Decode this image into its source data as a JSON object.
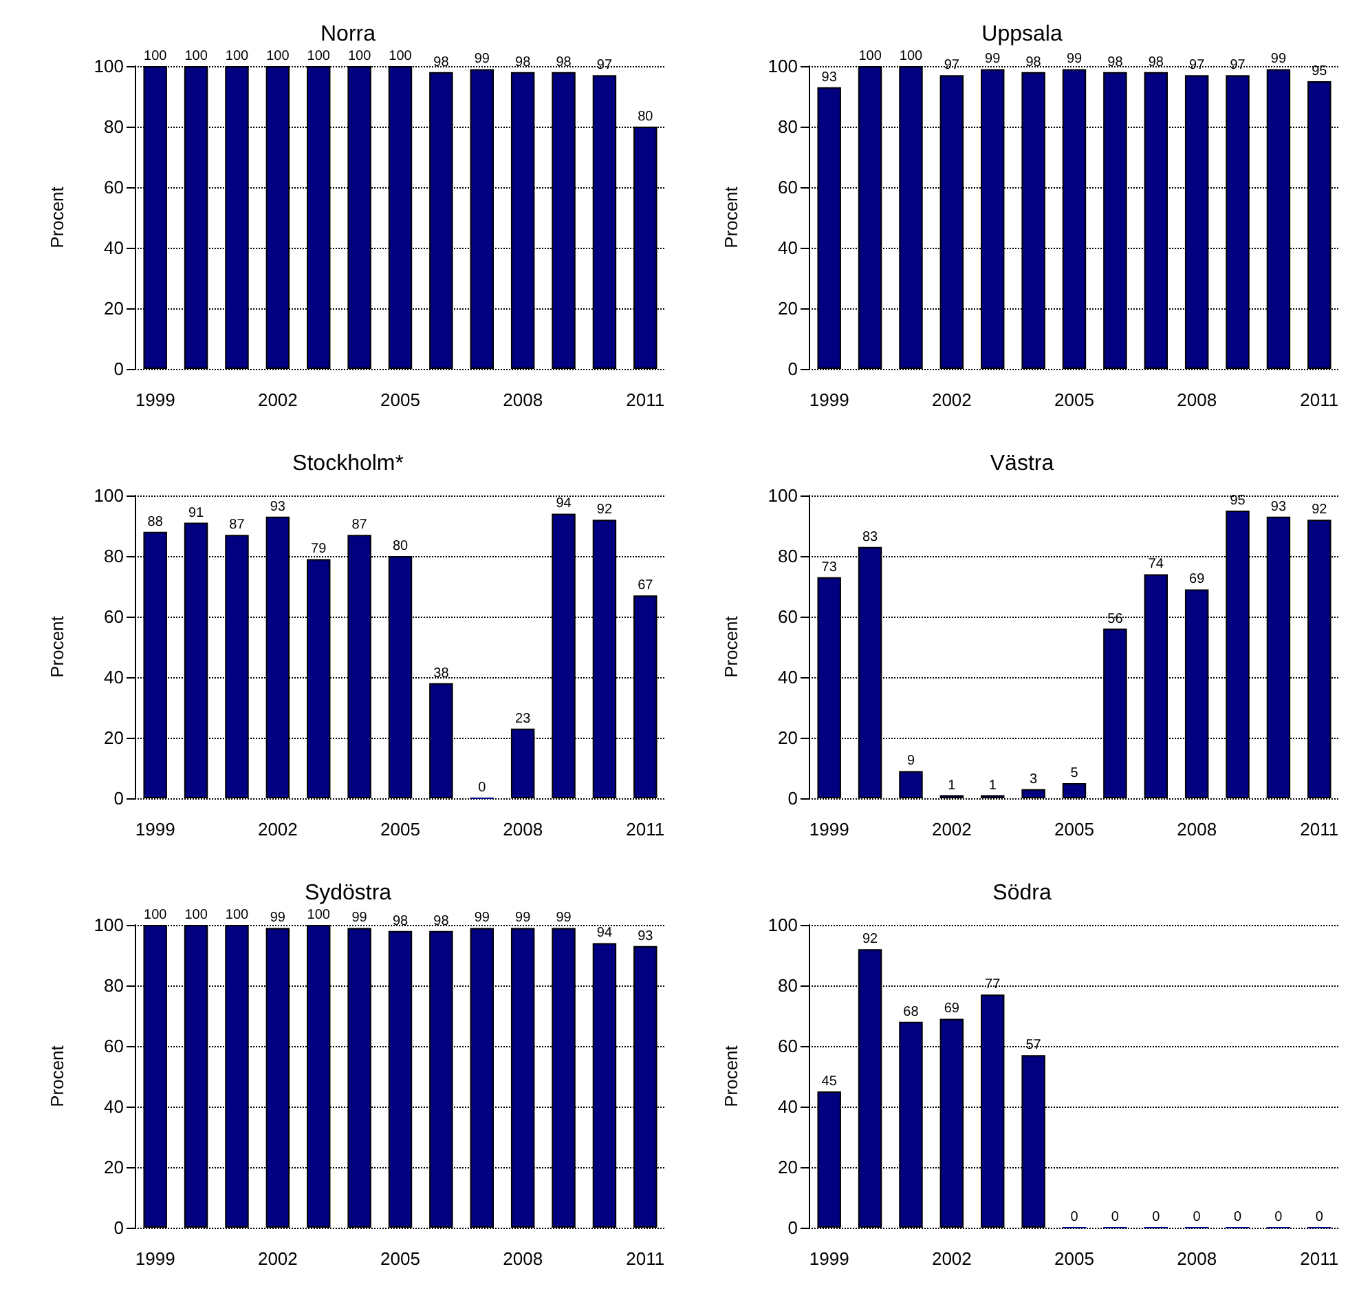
{
  "chart_data": [
    {
      "type": "bar",
      "title": "Norra",
      "ylabel": "Procent",
      "categories": [
        "1999",
        null,
        null,
        "2002",
        null,
        null,
        "2005",
        null,
        null,
        "2008",
        null,
        null,
        "2011"
      ],
      "values": [
        100,
        100,
        100,
        100,
        100,
        100,
        100,
        98,
        99,
        98,
        98,
        97,
        80
      ],
      "color": "#000080",
      "ylim": [
        0,
        100
      ],
      "yticks": [
        0,
        20,
        40,
        60,
        80,
        100
      ],
      "grid": "y",
      "data_labels": true
    },
    {
      "type": "bar",
      "title": "Uppsala",
      "ylabel": "Procent",
      "categories": [
        "1999",
        null,
        null,
        "2002",
        null,
        null,
        "2005",
        null,
        null,
        "2008",
        null,
        null,
        "2011"
      ],
      "values": [
        93,
        100,
        100,
        97,
        99,
        98,
        99,
        98,
        98,
        97,
        97,
        99,
        95
      ],
      "color": "#000080",
      "ylim": [
        0,
        100
      ],
      "yticks": [
        0,
        20,
        40,
        60,
        80,
        100
      ],
      "grid": "y",
      "data_labels": true
    },
    {
      "type": "bar",
      "title": "Stockholm*",
      "ylabel": "Procent",
      "categories": [
        "1999",
        null,
        null,
        "2002",
        null,
        null,
        "2005",
        null,
        null,
        "2008",
        null,
        null,
        "2011"
      ],
      "values": [
        88,
        91,
        87,
        93,
        79,
        87,
        80,
        38,
        0,
        23,
        94,
        92,
        67
      ],
      "color": "#000080",
      "ylim": [
        0,
        100
      ],
      "yticks": [
        0,
        20,
        40,
        60,
        80,
        100
      ],
      "grid": "y",
      "data_labels": true
    },
    {
      "type": "bar",
      "title": "Västra",
      "ylabel": "Procent",
      "categories": [
        "1999",
        null,
        null,
        "2002",
        null,
        null,
        "2005",
        null,
        null,
        "2008",
        null,
        null,
        "2011"
      ],
      "values": [
        73,
        83,
        9,
        1,
        1,
        3,
        5,
        56,
        74,
        69,
        95,
        93,
        92
      ],
      "color": "#000080",
      "ylim": [
        0,
        100
      ],
      "yticks": [
        0,
        20,
        40,
        60,
        80,
        100
      ],
      "grid": "y",
      "data_labels": true
    },
    {
      "type": "bar",
      "title": "Sydöstra",
      "ylabel": "Procent",
      "categories": [
        "1999",
        null,
        null,
        "2002",
        null,
        null,
        "2005",
        null,
        null,
        "2008",
        null,
        null,
        "2011"
      ],
      "values": [
        100,
        100,
        100,
        99,
        100,
        99,
        98,
        98,
        99,
        99,
        99,
        94,
        93
      ],
      "color": "#000080",
      "ylim": [
        0,
        100
      ],
      "yticks": [
        0,
        20,
        40,
        60,
        80,
        100
      ],
      "grid": "y",
      "data_labels": true
    },
    {
      "type": "bar",
      "title": "Södra",
      "ylabel": "Procent",
      "categories": [
        "1999",
        null,
        null,
        "2002",
        null,
        null,
        "2005",
        null,
        null,
        "2008",
        null,
        null,
        "2011"
      ],
      "values": [
        45,
        92,
        68,
        69,
        77,
        57,
        0,
        0,
        0,
        0,
        0,
        0,
        0
      ],
      "color": "#000080",
      "ylim": [
        0,
        100
      ],
      "yticks": [
        0,
        20,
        40,
        60,
        80,
        100
      ],
      "grid": "y",
      "data_labels": true
    }
  ]
}
